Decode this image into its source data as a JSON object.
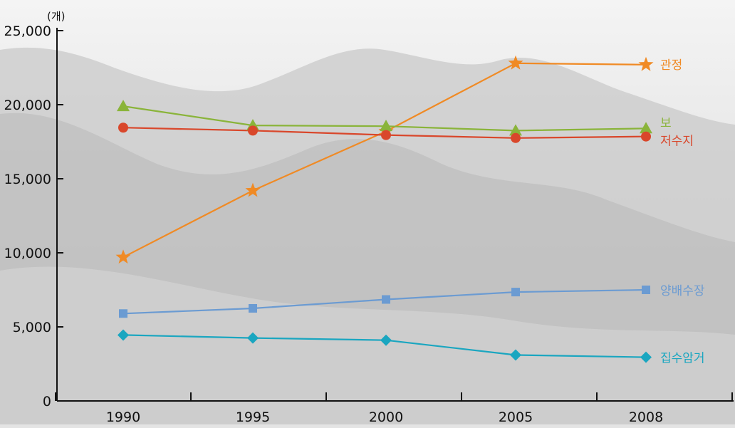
{
  "chart_data": {
    "type": "line",
    "unit_label": "(개)",
    "x": [
      "1990",
      "1995",
      "2000",
      "2005",
      "2008"
    ],
    "ylim": [
      0,
      25000
    ],
    "yticks": [
      "0",
      "5,000",
      "10,000",
      "15,000",
      "20,000",
      "25,000"
    ],
    "grid": false,
    "series": [
      {
        "name": "관정",
        "values": [
          9700,
          14200,
          18200,
          22800,
          22700
        ],
        "color": "#f08a24",
        "marker": "star"
      },
      {
        "name": "보",
        "values": [
          19900,
          18600,
          18550,
          18250,
          18400
        ],
        "color": "#8ab43a",
        "marker": "triangle"
      },
      {
        "name": "저수지",
        "values": [
          18450,
          18250,
          17950,
          17750,
          17850
        ],
        "color": "#d9472b",
        "marker": "circle"
      },
      {
        "name": "양배수장",
        "values": [
          5900,
          6250,
          6850,
          7350,
          7500
        ],
        "color": "#6b9bd2",
        "marker": "square"
      },
      {
        "name": "집수암거",
        "values": [
          4450,
          4250,
          4100,
          3100,
          2950
        ],
        "color": "#1aa6c0",
        "marker": "diamond"
      }
    ]
  }
}
